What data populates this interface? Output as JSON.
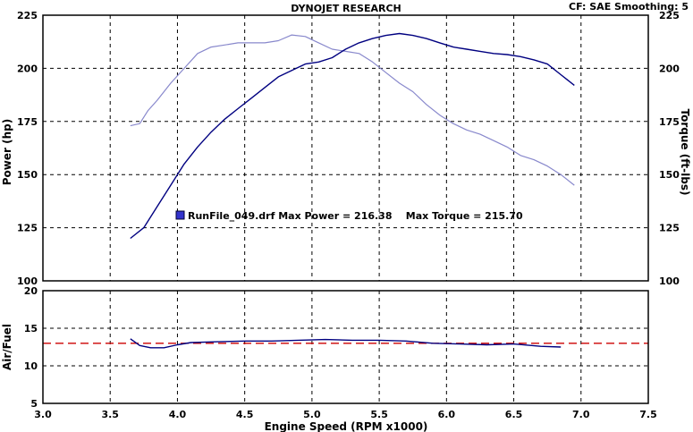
{
  "header": {
    "title": "DYNOJET RESEARCH",
    "info": "CF: SAE  Smoothing: 5"
  },
  "annotation": {
    "text": "RunFile_049.drf Max Power = 216.38    Max Torque = 215.70",
    "color": "#3333cc"
  },
  "colors": {
    "power": "#000080",
    "torque": "#8888cc",
    "afr": "#000080",
    "afr_target": "#cc0000",
    "grid": "#000000"
  },
  "chart_data": [
    {
      "type": "line",
      "title": "DYNOJET RESEARCH",
      "xlabel": "",
      "ylabel": "Power (hp)",
      "y2label": "Torque (ft-lbs)",
      "xlim": [
        3.0,
        7.5
      ],
      "ylim": [
        100,
        225
      ],
      "y2lim": [
        100,
        225
      ],
      "grid": true,
      "series": [
        {
          "name": "Power",
          "axis": "left",
          "x": [
            3.65,
            3.75,
            3.85,
            3.95,
            4.05,
            4.15,
            4.25,
            4.35,
            4.45,
            4.55,
            4.65,
            4.75,
            4.85,
            4.95,
            5.05,
            5.15,
            5.25,
            5.35,
            5.45,
            5.55,
            5.65,
            5.75,
            5.85,
            5.95,
            6.05,
            6.15,
            6.25,
            6.35,
            6.45,
            6.55,
            6.65,
            6.75,
            6.85,
            6.95
          ],
          "values": [
            120,
            125,
            135,
            145,
            155,
            163,
            170,
            176,
            181,
            186,
            191,
            196,
            199,
            202,
            203,
            205,
            209,
            212,
            214,
            215.5,
            216.38,
            215.5,
            214,
            212,
            210,
            209,
            208,
            207,
            206.5,
            205.5,
            204,
            202,
            197,
            192
          ]
        },
        {
          "name": "Torque",
          "axis": "right",
          "x": [
            3.65,
            3.72,
            3.78,
            3.85,
            3.95,
            4.05,
            4.15,
            4.25,
            4.35,
            4.45,
            4.55,
            4.65,
            4.75,
            4.85,
            4.95,
            5.05,
            5.15,
            5.25,
            5.35,
            5.45,
            5.55,
            5.65,
            5.75,
            5.85,
            5.95,
            6.05,
            6.15,
            6.25,
            6.35,
            6.45,
            6.55,
            6.65,
            6.75,
            6.85,
            6.95
          ],
          "values": [
            173,
            174,
            180,
            185,
            193,
            200,
            207,
            210,
            211,
            212,
            212,
            212,
            213,
            215.7,
            215,
            212,
            209,
            208,
            207,
            203,
            198,
            193,
            189,
            183,
            178,
            174,
            171,
            169,
            166,
            163,
            159,
            157,
            154,
            150,
            145
          ]
        }
      ]
    },
    {
      "type": "line",
      "xlabel": "Engine Speed (RPM x1000)",
      "ylabel": "Air/Fuel",
      "xlim": [
        3.0,
        7.5
      ],
      "ylim": [
        5,
        20
      ],
      "x_ticks": [
        "3.0",
        "3.5",
        "4.0",
        "4.5",
        "5.0",
        "5.5",
        "6.0",
        "6.5",
        "7.0",
        "7.5"
      ],
      "y_ticks": [
        5,
        10,
        15,
        20
      ],
      "grid": true,
      "series": [
        {
          "name": "Air/Fuel",
          "x": [
            3.65,
            3.72,
            3.8,
            3.9,
            4.0,
            4.1,
            4.3,
            4.5,
            4.7,
            4.9,
            5.1,
            5.3,
            5.5,
            5.7,
            5.9,
            6.1,
            6.3,
            6.5,
            6.7,
            6.85
          ],
          "values": [
            13.6,
            12.7,
            12.4,
            12.4,
            12.8,
            13.1,
            13.2,
            13.3,
            13.3,
            13.4,
            13.5,
            13.4,
            13.4,
            13.3,
            13.0,
            12.9,
            12.8,
            12.9,
            12.6,
            12.5
          ]
        },
        {
          "name": "Target",
          "style": "dashed",
          "x": [
            3.0,
            7.5
          ],
          "values": [
            13.0,
            13.0
          ]
        }
      ]
    }
  ]
}
